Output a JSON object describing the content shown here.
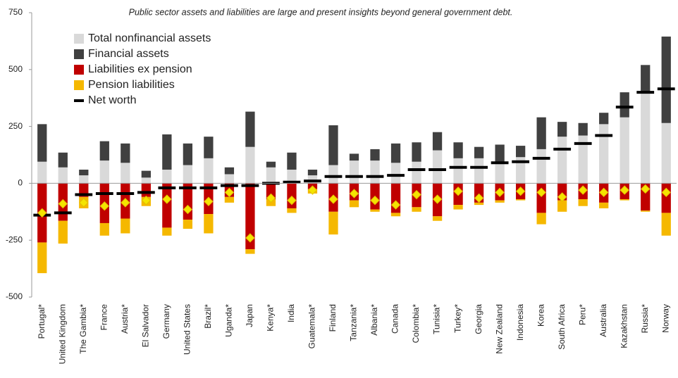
{
  "chart_data": {
    "type": "stacked_bar",
    "title": "Public sector assets and liabilities are large and present insights beyond general government debt.",
    "categories": [
      "Portugal*",
      "United Kingdom",
      "The Gambia*",
      "France",
      "Austria*",
      "El Salvador",
      "Germany",
      "United States",
      "Brazil*",
      "Uganda*",
      "Japan",
      "Kenya*",
      "India",
      "Guatemala*",
      "Finland",
      "Tanzania*",
      "Albania*",
      "Canada",
      "Colombia*",
      "Tunisia*",
      "Turkey*",
      "Georgia",
      "New Zealand",
      "Indonesia",
      "Korea",
      "South Africa",
      "Peru*",
      "Australia",
      "Kazakhstan",
      "Russia*",
      "Norway"
    ],
    "series": [
      {
        "name": "Total nonfinancial assets",
        "color": "#d9d9d9",
        "values": [
          95,
          70,
          35,
          100,
          90,
          25,
          60,
          80,
          110,
          40,
          160,
          70,
          60,
          35,
          80,
          100,
          100,
          90,
          95,
          145,
          110,
          110,
          95,
          115,
          150,
          205,
          210,
          260,
          290,
          400,
          265
        ]
      },
      {
        "name": "Financial assets",
        "color": "#404040",
        "values": [
          165,
          65,
          25,
          85,
          85,
          30,
          155,
          95,
          95,
          30,
          155,
          25,
          75,
          25,
          175,
          30,
          50,
          85,
          85,
          80,
          70,
          50,
          75,
          50,
          140,
          65,
          55,
          50,
          110,
          120,
          380
        ]
      },
      {
        "name": "Liabilities ex pension",
        "color": "#c00000",
        "values": [
          -260,
          -165,
          -60,
          -175,
          -155,
          -60,
          -195,
          -160,
          -135,
          -60,
          -290,
          -70,
          -110,
          -25,
          -125,
          -75,
          -115,
          -130,
          -105,
          -145,
          -95,
          -85,
          -75,
          -70,
          -130,
          -75,
          -70,
          -85,
          -70,
          -120,
          -130
        ]
      },
      {
        "name": "Pension liabilities",
        "color": "#f5b800",
        "values": [
          -135,
          -100,
          -50,
          -55,
          -65,
          -40,
          -35,
          -40,
          -85,
          -25,
          -20,
          -30,
          -20,
          -20,
          -100,
          -30,
          -10,
          -15,
          -20,
          -20,
          -20,
          -10,
          -10,
          -5,
          -50,
          -50,
          -30,
          -25,
          -5,
          -5,
          -100
        ]
      }
    ],
    "net_worth": {
      "name": "Net worth",
      "color": "#000000",
      "values": [
        -140,
        -130,
        -50,
        -45,
        -45,
        -40,
        -20,
        -20,
        -20,
        -10,
        -10,
        0,
        5,
        10,
        30,
        30,
        30,
        35,
        60,
        60,
        70,
        70,
        90,
        95,
        110,
        150,
        175,
        210,
        335,
        400,
        415
      ]
    },
    "diamonds": {
      "color": "#f5e400",
      "values": [
        -130,
        -90,
        -85,
        -100,
        -85,
        -75,
        -70,
        -115,
        -80,
        -40,
        -240,
        -65,
        -75,
        -30,
        -70,
        -45,
        -75,
        -95,
        -50,
        -70,
        -35,
        -65,
        -40,
        -35,
        -40,
        -60,
        -30,
        -40,
        -30,
        -25,
        -40
      ]
    },
    "ylim": [
      -500,
      750
    ],
    "yticks": [
      -500,
      -250,
      0,
      250,
      500,
      750
    ],
    "grid": false
  }
}
